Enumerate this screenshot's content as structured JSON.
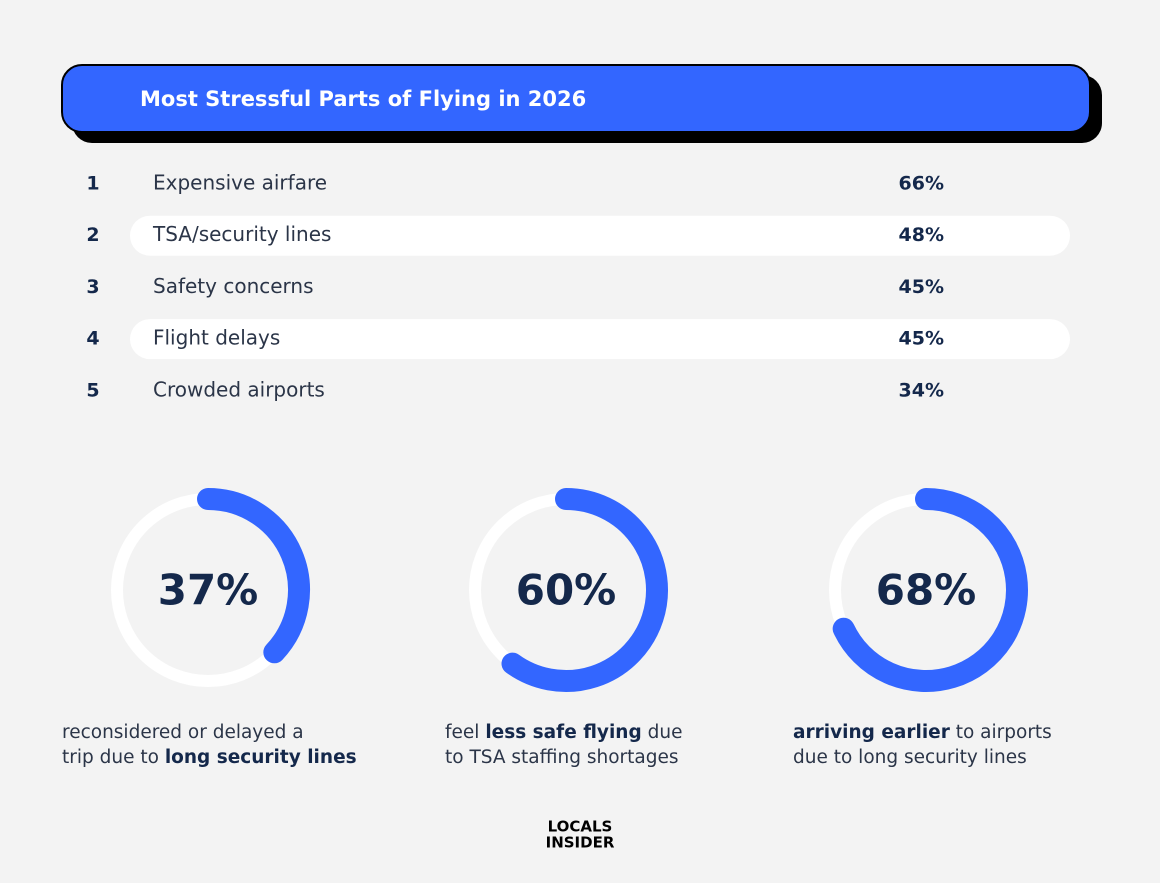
{
  "header": {
    "title": "Most Stressful Parts of Flying in 2026"
  },
  "table": {
    "rows": [
      [
        "1",
        "Expensive airfare",
        "66%"
      ],
      [
        "2",
        "TSA/security lines",
        "48%"
      ],
      [
        "3",
        "Safety concerns",
        "45%"
      ],
      [
        "4",
        "Flight delays",
        "45%"
      ],
      [
        "5",
        "Crowded airports",
        "34%"
      ]
    ],
    "highlight_rows": [
      1,
      3
    ]
  },
  "gauges": {
    "values": [
      37,
      60,
      68
    ],
    "value_labels": [
      "37%",
      "60%",
      "68%"
    ],
    "color": "#3366ff",
    "track_color": "#ffffff",
    "captions": [
      [
        [
          {
            "text": "reconsidered or delayed a",
            "bold": false
          }
        ],
        [
          {
            "text": "trip due to ",
            "bold": false
          },
          {
            "text": "long security lines",
            "bold": true
          }
        ]
      ],
      [
        [
          {
            "text": "feel ",
            "bold": false
          },
          {
            "text": "less safe flying",
            "bold": true
          },
          {
            "text": " due",
            "bold": false
          }
        ],
        [
          {
            "text": "to TSA staffing shortages",
            "bold": false
          }
        ]
      ],
      [
        [
          {
            "text": "arriving earlier",
            "bold": true
          },
          {
            "text": " to airports",
            "bold": false
          }
        ],
        [
          {
            "text": "due to long security lines",
            "bold": false
          }
        ]
      ]
    ]
  },
  "logo": [
    "LOCALS",
    "INSIDER"
  ]
}
